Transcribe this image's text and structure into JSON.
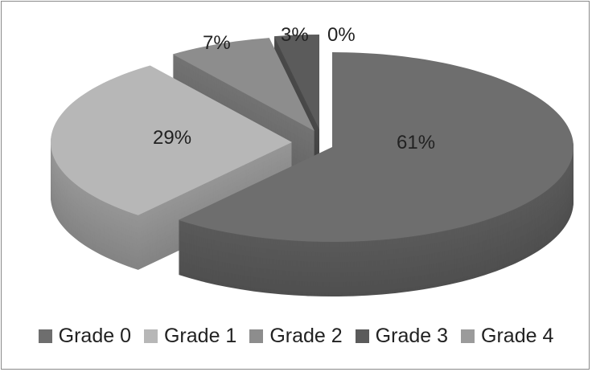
{
  "chart_data": {
    "type": "pie",
    "style": "3d-exploded",
    "categories": [
      "Grade 0",
      "Grade 1",
      "Grade 2",
      "Grade 3",
      "Grade 4"
    ],
    "values": [
      61,
      29,
      7,
      3,
      0
    ],
    "data_labels": [
      "61%",
      "29%",
      "7%",
      "3%",
      "0%"
    ],
    "colors": [
      "#6e6e6e",
      "#b7b7b7",
      "#8d8d8d",
      "#5b5b5b",
      "#9b9b9b"
    ],
    "legend_position": "bottom"
  }
}
